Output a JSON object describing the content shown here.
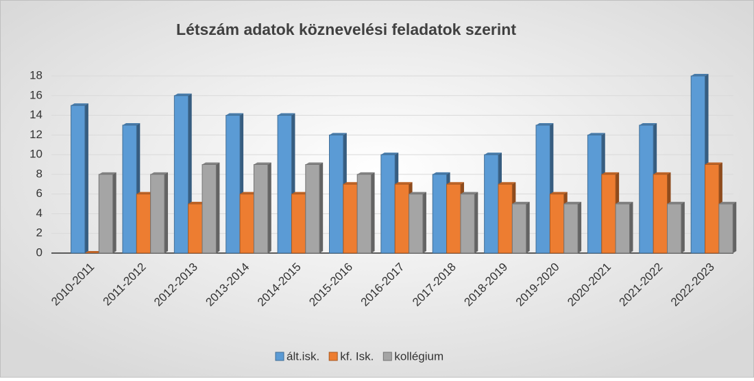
{
  "chart_data": {
    "type": "bar3d",
    "title": "Létszám adatok köznevelési feladatok szerint",
    "categories": [
      "2010-2011",
      "2011-2012",
      "2012-2013",
      "2013-2014",
      "2014-2015",
      "2015-2016",
      "2016-2017",
      "2017-2018",
      "2018-2019",
      "2019-2020",
      "2020-2021",
      "2021-2022",
      "2022-2023"
    ],
    "series": [
      {
        "name": "ált.isk.",
        "color": "#5b9bd5",
        "values": [
          15,
          13,
          16,
          14,
          14,
          12,
          10,
          8,
          10,
          13,
          12,
          13,
          18
        ]
      },
      {
        "name": "kf. Isk.",
        "color": "#ed7d31",
        "values": [
          0,
          6,
          5,
          6,
          6,
          7,
          7,
          7,
          7,
          6,
          8,
          8,
          9
        ]
      },
      {
        "name": "kollégium",
        "color": "#a5a5a5",
        "values": [
          8,
          8,
          9,
          9,
          9,
          8,
          6,
          6,
          5,
          5,
          5,
          5,
          5
        ]
      }
    ],
    "ylim": [
      0,
      18
    ],
    "yticks": [
      0,
      2,
      4,
      6,
      8,
      10,
      12,
      14,
      16,
      18
    ],
    "grid": true,
    "legend": "bottom"
  }
}
